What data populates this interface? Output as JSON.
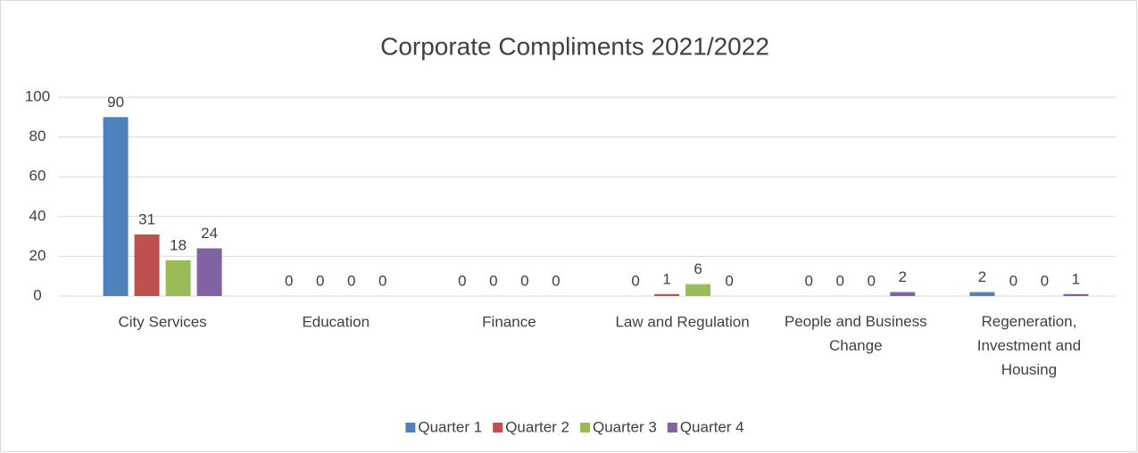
{
  "chart_data": {
    "type": "bar",
    "title": "Corporate Compliments 2021/2022",
    "categories": [
      "City Services",
      "Education",
      "Finance",
      "Law and Regulation",
      "People and Business Change",
      "Regeneration, Investment and Housing"
    ],
    "series": [
      {
        "name": "Quarter 1",
        "color": "#4f81bd",
        "values": [
          90,
          0,
          0,
          0,
          0,
          2
        ]
      },
      {
        "name": "Quarter 2",
        "color": "#c0504d",
        "values": [
          31,
          0,
          0,
          1,
          0,
          0
        ]
      },
      {
        "name": "Quarter 3",
        "color": "#9bbb59",
        "values": [
          18,
          0,
          0,
          6,
          0,
          0
        ]
      },
      {
        "name": "Quarter 4",
        "color": "#8064a2",
        "values": [
          24,
          0,
          0,
          0,
          2,
          1
        ]
      }
    ],
    "ylim": [
      0,
      100
    ],
    "yticks": [
      0,
      20,
      40,
      60,
      80,
      100
    ],
    "grid": true,
    "legend": "bottom"
  }
}
